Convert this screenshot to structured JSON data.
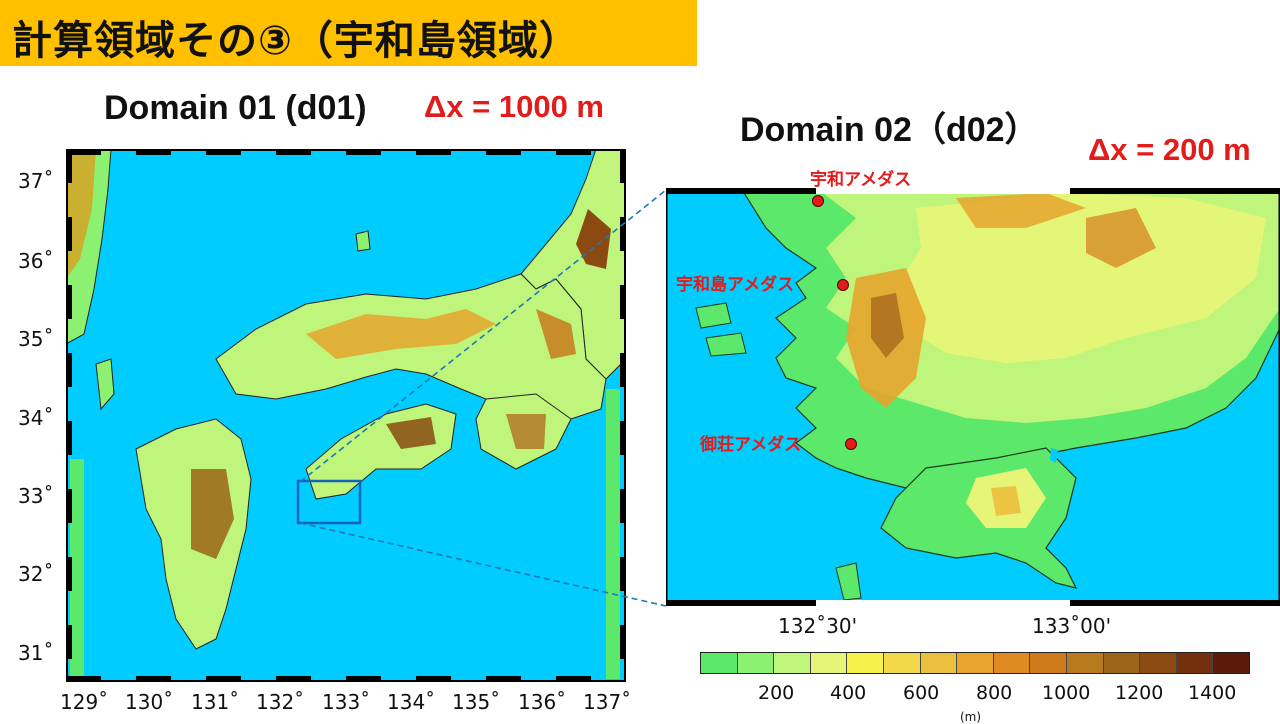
{
  "title": "計算領域その③（宇和島領域）",
  "domain1": {
    "title": "Domain 01 (d01)",
    "dx": "Δx = 1000 m",
    "lat_labels": [
      "37˚",
      "36˚",
      "35˚",
      "34˚",
      "33˚",
      "32˚",
      "31˚"
    ],
    "lon_labels": [
      "129˚",
      "130˚",
      "131˚",
      "132˚",
      "133˚",
      "134˚",
      "135˚",
      "136˚",
      "137˚"
    ]
  },
  "domain2": {
    "title": "Domain 02（d02）",
    "dx": "Δx = 200 m",
    "stations": [
      {
        "name": "宇和アメダス"
      },
      {
        "name": "宇和島アメダス"
      },
      {
        "name": "御荘アメダス"
      }
    ],
    "lon_labels": [
      "132˚30'",
      "133˚00'"
    ]
  },
  "colorbar": {
    "ticks": [
      "200",
      "400",
      "600",
      "800",
      "1000",
      "1200",
      "1400"
    ],
    "unit": "(m)",
    "colors": [
      "#5CE86A",
      "#8CF070",
      "#BEF57A",
      "#E6F578",
      "#F6F24A",
      "#F3D94A",
      "#EBC03C",
      "#E6A52E",
      "#E08A22",
      "#D07A1C",
      "#B87A1E",
      "#9C6418",
      "#8A4A12",
      "#74300C",
      "#5C1A0A"
    ]
  },
  "colors": {
    "sea": "#00CCFF",
    "lowland": "#5CE86A",
    "title_bg": "#FFC000",
    "accent_red": "#E21B1B",
    "zoom_box": "#1565C0"
  }
}
